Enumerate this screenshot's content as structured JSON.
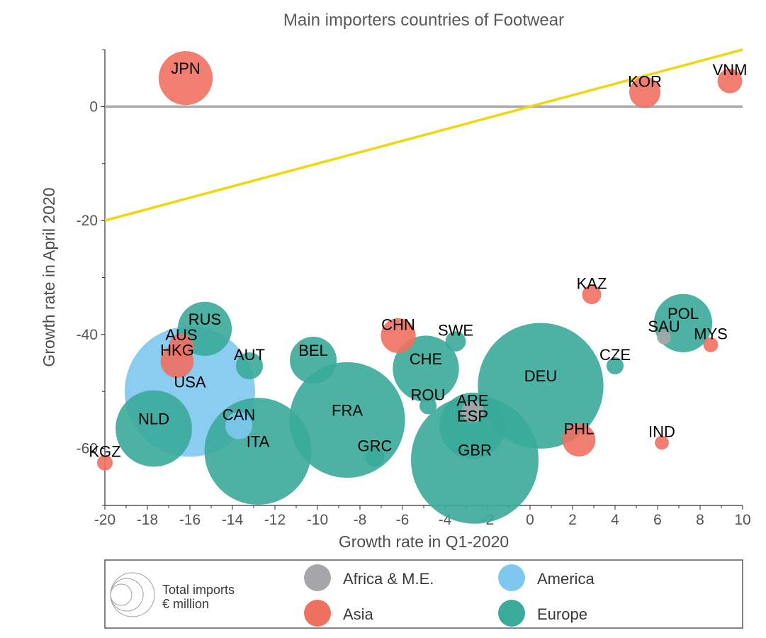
{
  "chart_data": {
    "type": "scatter",
    "title": "Main importers countries of Footwear",
    "xlabel": "Growth rate in Q1-2020",
    "ylabel": "Growth rate in April 2020",
    "xlim": [
      -20,
      10
    ],
    "ylim": [
      -70,
      10
    ],
    "x_ticks": [
      -20,
      -18,
      -16,
      -14,
      -12,
      -10,
      -8,
      -6,
      -4,
      -2,
      0,
      2,
      4,
      6,
      8,
      10
    ],
    "y_ticks": [
      0,
      -20,
      -40,
      -60
    ],
    "reference_lines": [
      {
        "type": "horizontal",
        "y": 0,
        "color": "#aaaaaa"
      },
      {
        "type": "diagonal",
        "from": [
          -20,
          -20
        ],
        "to": [
          10,
          10
        ],
        "color": "#f2d60c"
      }
    ],
    "legend": {
      "size_label_line1": "Total imports",
      "size_label_line2": "€ million",
      "regions": [
        {
          "name": "Africa & M.E.",
          "color": "#a6a6a8"
        },
        {
          "name": "America",
          "color": "#7ec8f0"
        },
        {
          "name": "Asia",
          "color": "#f07060"
        },
        {
          "name": "Europe",
          "color": "#3aaa9a"
        }
      ]
    },
    "points": [
      {
        "label": "JPN",
        "x": -16.2,
        "y": 5,
        "size": 1200,
        "region": "Asia"
      },
      {
        "label": "KOR",
        "x": 5.4,
        "y": 2.5,
        "size": 400,
        "region": "Asia"
      },
      {
        "label": "VNM",
        "x": 9.4,
        "y": 4.5,
        "size": 250,
        "region": "Asia"
      },
      {
        "label": "KAZ",
        "x": 2.9,
        "y": -33,
        "size": 150,
        "region": "Asia"
      },
      {
        "label": "POL",
        "x": 7.2,
        "y": -38,
        "size": 1400,
        "region": "Europe"
      },
      {
        "label": "SAU",
        "x": 6.3,
        "y": -40.5,
        "size": 80,
        "region": "Africa & M.E."
      },
      {
        "label": "MYS",
        "x": 8.5,
        "y": -41.8,
        "size": 90,
        "region": "Asia"
      },
      {
        "label": "CZE",
        "x": 4.0,
        "y": -45.5,
        "size": 120,
        "region": "Europe"
      },
      {
        "label": "CHN",
        "x": -6.2,
        "y": -40.2,
        "size": 500,
        "region": "Asia"
      },
      {
        "label": "SWE",
        "x": -3.5,
        "y": -41.2,
        "size": 170,
        "region": "Europe"
      },
      {
        "label": "RUS",
        "x": -15.3,
        "y": -39,
        "size": 1200,
        "region": "Europe"
      },
      {
        "label": "AUS",
        "x": -16.4,
        "y": -42,
        "size": 250,
        "region": "Asia"
      },
      {
        "label": "HKG",
        "x": -16.6,
        "y": -44.7,
        "size": 450,
        "region": "Asia"
      },
      {
        "label": "AUT",
        "x": -13.2,
        "y": -45.5,
        "size": 300,
        "region": "Europe"
      },
      {
        "label": "BEL",
        "x": -10.2,
        "y": -44.5,
        "size": 900,
        "region": "Europe"
      },
      {
        "label": "CHE",
        "x": -4.9,
        "y": -46,
        "size": 1800,
        "region": "Europe"
      },
      {
        "label": "DEU",
        "x": 0.5,
        "y": -49,
        "size": 6500,
        "region": "Europe"
      },
      {
        "label": "USA",
        "x": -16.0,
        "y": -50,
        "size": 7000,
        "region": "America"
      },
      {
        "label": "ROU",
        "x": -4.8,
        "y": -52.5,
        "size": 120,
        "region": "Europe"
      },
      {
        "label": "ARE",
        "x": -2.7,
        "y": -53.5,
        "size": 200,
        "region": "Africa & M.E."
      },
      {
        "label": "ESP",
        "x": -2.7,
        "y": -56,
        "size": 1800,
        "region": "Europe"
      },
      {
        "label": "FRA",
        "x": -8.6,
        "y": -55,
        "size": 5500,
        "region": "Europe"
      },
      {
        "label": "CAN",
        "x": -13.7,
        "y": -56,
        "size": 300,
        "region": "America"
      },
      {
        "label": "NLD",
        "x": -17.7,
        "y": -56.5,
        "size": 2400,
        "region": "Europe"
      },
      {
        "label": "PHL",
        "x": 2.3,
        "y": -58.5,
        "size": 450,
        "region": "Asia"
      },
      {
        "label": "IND",
        "x": 6.2,
        "y": -59,
        "size": 80,
        "region": "Asia"
      },
      {
        "label": "ITA",
        "x": -12.8,
        "y": -60.5,
        "size": 4700,
        "region": "Europe"
      },
      {
        "label": "GBR",
        "x": -2.6,
        "y": -62,
        "size": 6700,
        "region": "Europe"
      },
      {
        "label": "GRC",
        "x": -7.3,
        "y": -61.5,
        "size": 150,
        "region": "Europe"
      },
      {
        "label": "KGZ",
        "x": -20.0,
        "y": -62.5,
        "size": 100,
        "region": "Asia"
      }
    ]
  }
}
